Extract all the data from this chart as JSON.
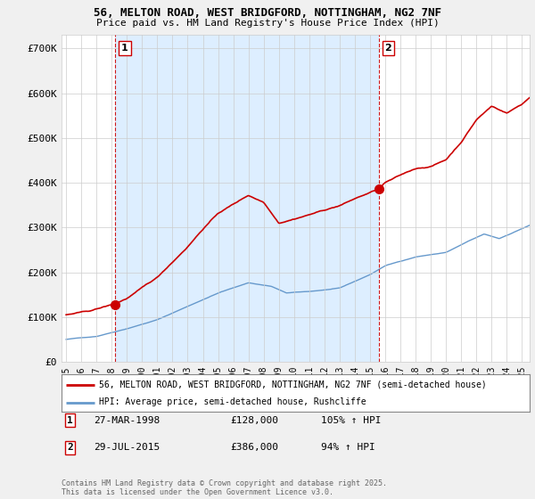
{
  "title1": "56, MELTON ROAD, WEST BRIDGFORD, NOTTINGHAM, NG2 7NF",
  "title2": "Price paid vs. HM Land Registry's House Price Index (HPI)",
  "ylabel_ticks": [
    "£0",
    "£100K",
    "£200K",
    "£300K",
    "£400K",
    "£500K",
    "£600K",
    "£700K"
  ],
  "ytick_values": [
    0,
    100000,
    200000,
    300000,
    400000,
    500000,
    600000,
    700000
  ],
  "ylim": [
    0,
    730000
  ],
  "xlim_start": 1994.7,
  "xlim_end": 2025.5,
  "legend_line1": "56, MELTON ROAD, WEST BRIDGFORD, NOTTINGHAM, NG2 7NF (semi-detached house)",
  "legend_line2": "HPI: Average price, semi-detached house, Rushcliffe",
  "sale1_label": "1",
  "sale1_date": "27-MAR-1998",
  "sale1_price": "£128,000",
  "sale1_hpi": "105% ↑ HPI",
  "sale1_x": 1998.23,
  "sale1_y": 128000,
  "sale2_label": "2",
  "sale2_date": "29-JUL-2015",
  "sale2_price": "£386,000",
  "sale2_hpi": "94% ↑ HPI",
  "sale2_x": 2015.56,
  "sale2_y": 386000,
  "red_color": "#cc0000",
  "blue_color": "#6699cc",
  "shade_color": "#ddeeff",
  "background_color": "#f0f0f0",
  "plot_bg_color": "#ffffff",
  "footer": "Contains HM Land Registry data © Crown copyright and database right 2025.\nThis data is licensed under the Open Government Licence v3.0."
}
